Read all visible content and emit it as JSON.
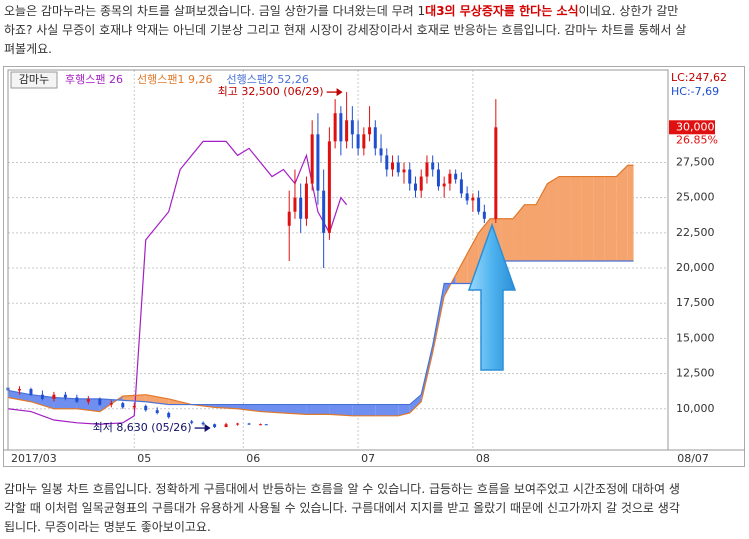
{
  "intro": {
    "lines": [
      [
        "오늘은 감마누라는 종목의 차트를 살펴보겠습니다. 금일 상한가를 다녀왔는데 무려 1",
        "대3의 무상증자를 한다는 소식",
        "이네요. 상한가 갈만"
      ],
      [
        "하죠? 사실 무증이 호재냐 악재는 아닌데 기분상 그리고 현재 시장이 강세장이라서 호재로 반응하는 흐름입니다. 감마누 차트를 통해서 살"
      ],
      [
        "펴볼게요."
      ]
    ]
  },
  "chart_data": {
    "type": "candlestick",
    "stock_name": "감마누",
    "indicators": [
      "LC:247,62",
      "HC:-7,69"
    ],
    "last_price": {
      "value": 30000,
      "label": "30,000"
    },
    "change_label": "26.85%",
    "ylim": [
      7070,
      34070
    ],
    "yticks": [
      {
        "value": 10000,
        "label": "10,000"
      },
      {
        "value": 12500,
        "label": "12,500"
      },
      {
        "value": 15000,
        "label": "15,000"
      },
      {
        "value": 17500,
        "label": "17,500"
      },
      {
        "value": 20000,
        "label": "20,000"
      },
      {
        "value": 22500,
        "label": "22,500"
      },
      {
        "value": 25000,
        "label": "25,000"
      },
      {
        "value": 27500,
        "label": "27,500"
      }
    ],
    "xlim": [
      0,
      115
    ],
    "xticks": [
      {
        "value": 0,
        "label": "2017/03"
      },
      {
        "value": 22,
        "label": "05"
      },
      {
        "value": 41,
        "label": "06"
      },
      {
        "value": 61,
        "label": "07"
      },
      {
        "value": 81,
        "label": "08"
      },
      {
        "value": 118,
        "label": "08/07"
      }
    ],
    "grid": true,
    "up_color": "#e01010",
    "down_color": "#1f4fd0",
    "candles": {
      "x": [
        0,
        2,
        4,
        6,
        8,
        10,
        12,
        14,
        16,
        18,
        20,
        22,
        24,
        26,
        28,
        32,
        34,
        36,
        38,
        40,
        42,
        44,
        45,
        49,
        50,
        51,
        52,
        53,
        54,
        55,
        56,
        57,
        58,
        59,
        60,
        61,
        62,
        63,
        64,
        65,
        66,
        67,
        68,
        69,
        70,
        71,
        72,
        73,
        74,
        75,
        76,
        77,
        78,
        79,
        80,
        81,
        82,
        83,
        85
      ],
      "open": [
        11500,
        11300,
        11400,
        11000,
        10700,
        11000,
        10800,
        10500,
        10700,
        10300,
        10400,
        10100,
        10200,
        9900,
        9700,
        9100,
        9000,
        8900,
        8700,
        8900,
        8950,
        8900,
        8900,
        23000,
        24000,
        25000,
        23500,
        26000,
        29500,
        25500,
        22500,
        29000,
        31000,
        29000,
        30500,
        29500,
        28500,
        29500,
        30000,
        28500,
        28000,
        27000,
        27500,
        26800,
        27000,
        26000,
        25500,
        26500,
        27500,
        27000,
        25800,
        26000,
        26700,
        26300,
        25300,
        24800,
        25000,
        24000,
        23500
      ],
      "high": [
        11800,
        11600,
        11500,
        11300,
        11200,
        11200,
        11000,
        10900,
        10800,
        10600,
        10500,
        10400,
        10300,
        10100,
        9800,
        9200,
        9100,
        8950,
        9000,
        9000,
        9000,
        8950,
        8900,
        25500,
        27000,
        26000,
        26500,
        30500,
        31000,
        27000,
        30000,
        32000,
        31500,
        32500,
        31500,
        30500,
        30000,
        31500,
        30500,
        29500,
        28500,
        28000,
        28000,
        27500,
        27500,
        26500,
        27000,
        28000,
        28000,
        27500,
        26500,
        27000,
        27000,
        26800,
        25800,
        25300,
        25500,
        24500,
        32000
      ],
      "low": [
        11200,
        11000,
        10900,
        10600,
        10500,
        10600,
        10400,
        10300,
        10200,
        10100,
        10000,
        9900,
        9800,
        9600,
        9300,
        8900,
        8800,
        8630,
        8700,
        8800,
        8850,
        8850,
        8850,
        20500,
        23500,
        22500,
        23000,
        25500,
        24500,
        20000,
        22000,
        28500,
        28000,
        28500,
        28500,
        28000,
        28000,
        29000,
        28000,
        27500,
        26500,
        26500,
        26500,
        26000,
        25500,
        25000,
        25000,
        26000,
        26500,
        25500,
        25000,
        25500,
        26000,
        25000,
        24500,
        24000,
        23800,
        23200,
        23200
      ],
      "close": [
        11300,
        11400,
        11000,
        10700,
        11000,
        10800,
        10500,
        10700,
        10300,
        10400,
        10100,
        10200,
        9900,
        9700,
        9400,
        9000,
        8900,
        8700,
        8900,
        8950,
        8900,
        8900,
        8850,
        24000,
        25000,
        23500,
        26000,
        29500,
        25500,
        22500,
        29000,
        31000,
        29000,
        30500,
        29500,
        28500,
        29500,
        30000,
        28500,
        28000,
        27000,
        27500,
        26800,
        27000,
        26000,
        25500,
        26500,
        27500,
        27000,
        25800,
        26000,
        26700,
        26300,
        25300,
        24800,
        25000,
        24000,
        23500,
        30000
      ]
    },
    "series": [
      {
        "name": "후행스팬 26",
        "color": "#a31fc4",
        "x": [
          0,
          4,
          8,
          12,
          16,
          20,
          22,
          24,
          26,
          28,
          30,
          32,
          34,
          36,
          38,
          40,
          42,
          44,
          46,
          48,
          50,
          52,
          54,
          56,
          58,
          59
        ],
        "values": [
          10000,
          9800,
          9200,
          9000,
          8900,
          9000,
          9500,
          22000,
          23000,
          24000,
          27000,
          28000,
          29000,
          29000,
          29000,
          28000,
          28500,
          27500,
          26500,
          27000,
          26000,
          28000,
          24000,
          22500,
          25000,
          24500
        ]
      },
      {
        "name": "선행스팬1 9,26",
        "color": "#e0782a",
        "x": [
          0,
          4,
          8,
          12,
          16,
          20,
          24,
          28,
          32,
          36,
          40,
          44,
          48,
          52,
          56,
          60,
          64,
          68,
          70,
          72,
          74,
          76,
          78,
          80,
          82,
          84,
          86,
          88,
          90,
          92,
          94,
          96,
          98,
          100,
          102,
          104,
          106,
          108,
          109
        ],
        "values": [
          10800,
          10500,
          10000,
          10000,
          9800,
          10900,
          11000,
          10700,
          10300,
          10100,
          10000,
          9800,
          9700,
          9600,
          9600,
          9500,
          9500,
          9500,
          9700,
          10500,
          14000,
          18000,
          19500,
          21000,
          22500,
          23500,
          23500,
          23500,
          24500,
          24500,
          26000,
          26500,
          26500,
          26500,
          26500,
          26500,
          26500,
          27300,
          27300
        ]
      },
      {
        "name": "선행스팬2 52,26",
        "color": "#4a72d6",
        "x": [
          0,
          4,
          8,
          12,
          16,
          20,
          24,
          28,
          32,
          36,
          40,
          44,
          48,
          52,
          56,
          60,
          64,
          68,
          70,
          72,
          74,
          76,
          78,
          80,
          82,
          84,
          86,
          88,
          90,
          92,
          94,
          96,
          98,
          100,
          102,
          104,
          106,
          108,
          109
        ],
        "values": [
          11300,
          11000,
          10800,
          10700,
          10700,
          10600,
          10500,
          10300,
          10300,
          10300,
          10300,
          10300,
          10300,
          10300,
          10300,
          10300,
          10300,
          10300,
          10300,
          11000,
          14500,
          18900,
          18900,
          18900,
          18900,
          20500,
          20500,
          20500,
          20500,
          20500,
          20500,
          20500,
          20500,
          20500,
          20500,
          20500,
          20500,
          20500,
          20500
        ]
      }
    ],
    "cloud_colors": {
      "up": "#f5a46e",
      "down": "#6e8ff0"
    },
    "annotations": [
      {
        "label": "최고 32,500 (06/29)",
        "value": 32500,
        "x": 59,
        "color": "#c00000"
      },
      {
        "label": "최저 8,630 (05/26)",
        "value": 8630,
        "x": 36,
        "color": "#10106a"
      }
    ]
  },
  "outro": {
    "lines": [
      "감마누 일봉 차트 흐름입니다. 정확하게 구름대에서 반등하는 흐름을 알 수 있습니다. 급등하는 흐름을 보여주었고 시간조정에 대하여 생",
      "각할 때 이처럼 일목균형표의 구름대가 유용하게 사용될 수 있습니다. 구름대에서 지지를 받고 올랐기 때문에 신고가까지 갈 것으로 생각",
      "됩니다. 무증이라는 명분도 좋아보이고요."
    ]
  }
}
